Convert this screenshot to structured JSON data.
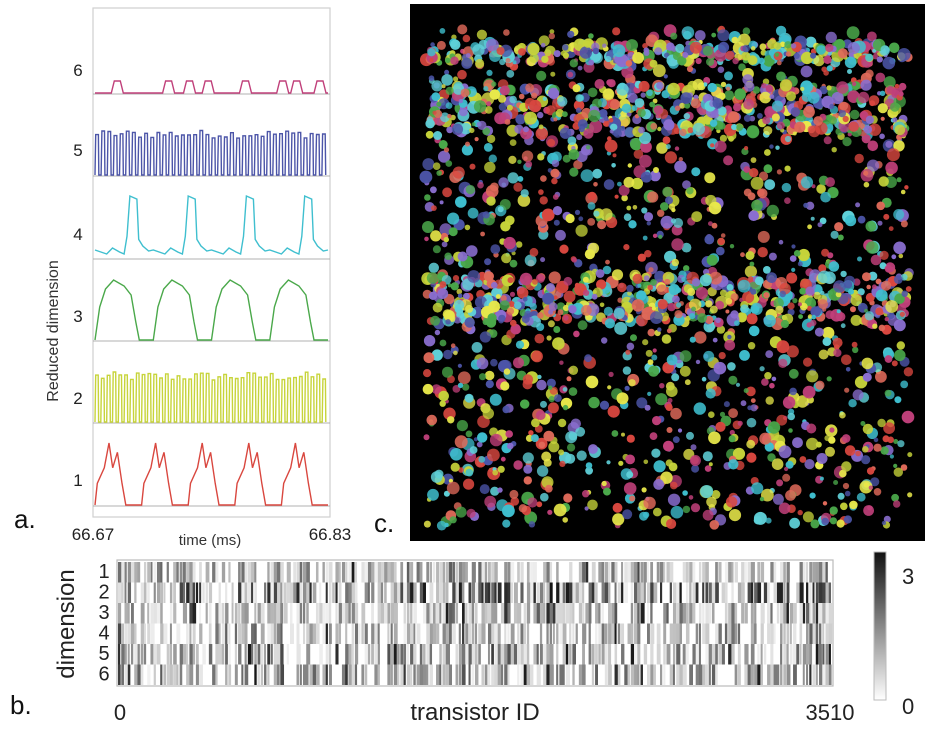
{
  "panel_labels": {
    "a": "a.",
    "b": "b.",
    "c": "c."
  },
  "chart_data": [
    {
      "panel": "a",
      "type": "line",
      "ylabel": "Reduced dimension",
      "xlabel": "time (ms)",
      "xlim": [
        66.67,
        66.83
      ],
      "x_tick_labels": [
        "66.67",
        "66.83"
      ],
      "y_tick_labels": [
        "1",
        "2",
        "3",
        "4",
        "5",
        "6"
      ],
      "series": [
        {
          "dimension": "1",
          "color": "#d9473f",
          "pattern": "spaced double-peaked pulses",
          "pulses": 5
        },
        {
          "dimension": "2",
          "color": "#c7d43a",
          "pattern": "dense square wave",
          "pulses": 40
        },
        {
          "dimension": "3",
          "color": "#4aa84a",
          "pattern": "rounded plateau pulses",
          "pulses": 4
        },
        {
          "dimension": "4",
          "color": "#3fbfcf",
          "pattern": "sharp spikes with small ripples",
          "pulses": 4
        },
        {
          "dimension": "5",
          "color": "#4c55a8",
          "pattern": "dense square wave",
          "pulses": 38
        },
        {
          "dimension": "6",
          "color": "#c0407a",
          "pattern": "sparse small bumps",
          "pulses": 8
        }
      ]
    },
    {
      "panel": "b",
      "type": "heatmap",
      "ylabel": "dimension",
      "xlabel": "transistor ID",
      "rows": [
        "1",
        "2",
        "3",
        "4",
        "5",
        "6"
      ],
      "xlim": [
        0,
        3510
      ],
      "x_tick_labels": [
        "0",
        "3510"
      ],
      "colorbar": {
        "min": 0,
        "max": 3,
        "tick_labels": [
          "3",
          "0"
        ],
        "low_color": "#ffffff",
        "high_color": "#111111"
      }
    },
    {
      "panel": "c",
      "type": "scatter",
      "background": "#000000",
      "palette": [
        "#d9473f",
        "#c7d43a",
        "#4aa84a",
        "#3fbfcf",
        "#4c55a8",
        "#c0407a",
        "#e8e84a",
        "#5fd0d8",
        "#e06a5a",
        "#8a6ed0"
      ]
    }
  ]
}
